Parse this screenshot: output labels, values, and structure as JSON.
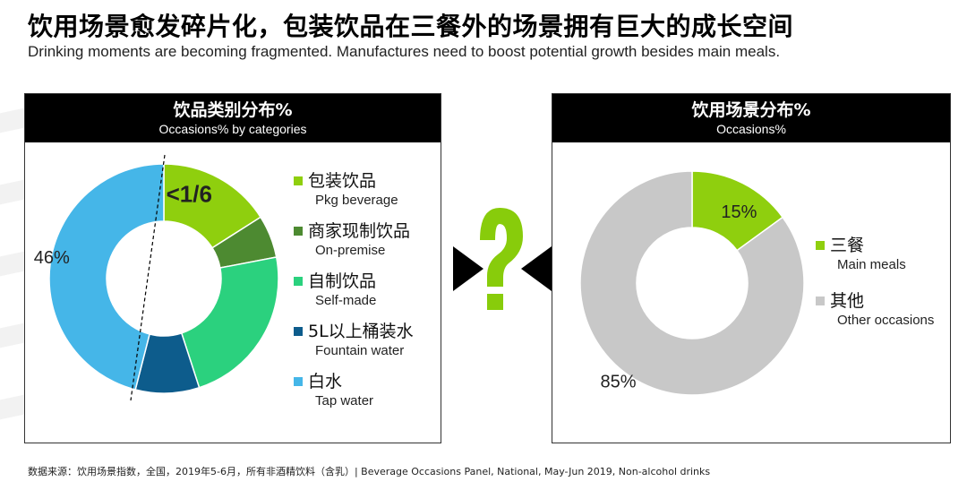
{
  "header": {
    "title": "饮用场景愈发碎片化，包装饮品在三餐外的场景拥有巨大的成长空间",
    "subtitle": "Drinking moments are becoming fragmented. Manufactures need to boost potential growth besides main meals."
  },
  "left_panel": {
    "title_cn": "饮品类别分布%",
    "title_en": "Occasions% by categories"
  },
  "right_panel": {
    "title_cn": "饮用场景分布%",
    "title_en": "Occasions%"
  },
  "footer": {
    "source": "数据来源：饮用场景指数，全国，2019年5-6月，所有非酒精饮料（含乳）| Beverage Occasions Panel, National, May-Jun 2019, Non-alcohol drinks"
  },
  "colors": {
    "lime": "#8fcf0e",
    "dark_green": "#4d8a31",
    "mint": "#2bd17e",
    "navy": "#0d5c8c",
    "sky": "#45b6e8",
    "grey": "#c8c8c8",
    "question_mark": "#88cc0b"
  },
  "icons": {
    "question": "question-mark-icon",
    "arrows": "arrow-pointer-icon"
  },
  "chart_data": [
    {
      "type": "pie",
      "donut": true,
      "title": "饮品类别分布%",
      "subtitle": "Occasions% by categories",
      "categories": [
        "包装饮品",
        "商家现制饮品",
        "自制饮品",
        "5L以上桶装水",
        "白水"
      ],
      "categories_en": [
        "Pkg beverage",
        "On-premise",
        "Self-made",
        "Fountain water",
        "Tap water"
      ],
      "values": [
        16,
        6,
        23,
        9,
        46
      ],
      "data_labels": [
        "<1/6",
        "",
        "",
        "",
        "46%"
      ],
      "colors": [
        "#8fcf0e",
        "#4d8a31",
        "#2bd17e",
        "#0d5c8c",
        "#45b6e8"
      ],
      "legend_position": "right"
    },
    {
      "type": "pie",
      "donut": true,
      "title": "饮用场景分布%",
      "subtitle": "Occasions%",
      "categories": [
        "三餐",
        "其他"
      ],
      "categories_en": [
        "Main meals",
        "Other occasions"
      ],
      "values": [
        15,
        85
      ],
      "data_labels": [
        "15%",
        "85%"
      ],
      "colors": [
        "#8fcf0e",
        "#c8c8c8"
      ],
      "legend_position": "right"
    }
  ]
}
